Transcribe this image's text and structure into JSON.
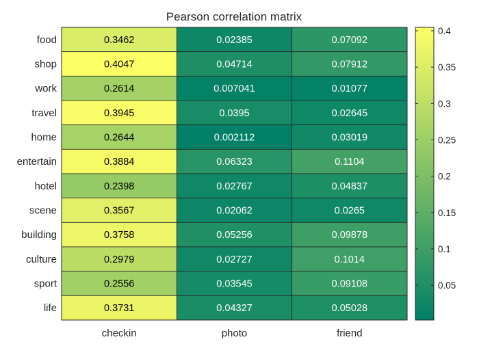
{
  "chart_data": {
    "type": "heatmap",
    "title": "Pearson correlation matrix",
    "xlabel": "",
    "ylabel": "",
    "x_categories": [
      "checkin",
      "photo",
      "friend"
    ],
    "y_categories": [
      "food",
      "shop",
      "work",
      "travel",
      "home",
      "entertain",
      "hotel",
      "scene",
      "building",
      "culture",
      "sport",
      "life"
    ],
    "values": [
      [
        0.3462,
        0.02385,
        0.07092
      ],
      [
        0.4047,
        0.04714,
        0.07912
      ],
      [
        0.2614,
        0.007041,
        0.01077
      ],
      [
        0.3945,
        0.0395,
        0.02645
      ],
      [
        0.2644,
        0.002112,
        0.03019
      ],
      [
        0.3884,
        0.06323,
        0.1104
      ],
      [
        0.2398,
        0.02767,
        0.04837
      ],
      [
        0.3567,
        0.02062,
        0.0265
      ],
      [
        0.3758,
        0.05256,
        0.09878
      ],
      [
        0.2979,
        0.02727,
        0.1014
      ],
      [
        0.2556,
        0.03545,
        0.09108
      ],
      [
        0.3731,
        0.04327,
        0.05028
      ]
    ],
    "value_labels": [
      [
        "0.3462",
        "0.02385",
        "0.07092"
      ],
      [
        "0.4047",
        "0.04714",
        "0.07912"
      ],
      [
        "0.2614",
        "0.007041",
        "0.01077"
      ],
      [
        "0.3945",
        "0.0395",
        "0.02645"
      ],
      [
        "0.2644",
        "0.002112",
        "0.03019"
      ],
      [
        "0.3884",
        "0.06323",
        "0.1104"
      ],
      [
        "0.2398",
        "0.02767",
        "0.04837"
      ],
      [
        "0.3567",
        "0.02062",
        "0.0265"
      ],
      [
        "0.3758",
        "0.05256",
        "0.09878"
      ],
      [
        "0.2979",
        "0.02727",
        "0.1014"
      ],
      [
        "0.2556",
        "0.03545",
        "0.09108"
      ],
      [
        "0.3731",
        "0.04327",
        "0.05028"
      ]
    ],
    "colormap": "summer",
    "colormap_low": "#008066",
    "colormap_high": "#ffff66",
    "color_limits": [
      0.002112,
      0.4047
    ],
    "colorbar": {
      "ticks": [
        0.05,
        0.1,
        0.15,
        0.2,
        0.25,
        0.3,
        0.35,
        0.4
      ],
      "tick_labels": [
        "0.05",
        "0.1",
        "0.15",
        "0.2",
        "0.25",
        "0.3",
        "0.35",
        "0.4"
      ],
      "placement": "right"
    },
    "grid": true,
    "dark_text_color": "#000000",
    "light_text_color": "#ffffff",
    "cell_border_color": "#262626"
  }
}
